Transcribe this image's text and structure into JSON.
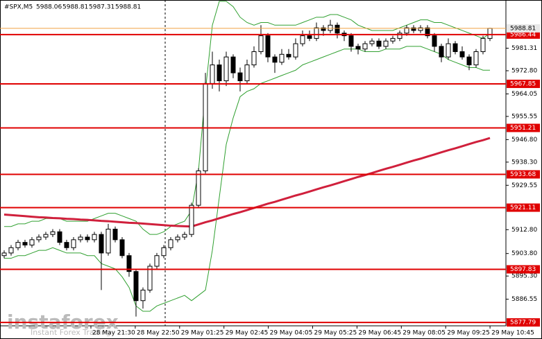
{
  "chart_data": {
    "type": "candlestick",
    "symbol": "#SPX,M5",
    "quote": [
      5988.06,
      5988.81,
      5987.31,
      5988.81
    ],
    "brand": "instaforex",
    "brand_tagline": "Instant Forex Trading",
    "ylim": [
      5876.5,
      5999.5
    ],
    "yticks": [
      5981.31,
      {
        "value": 5972.8,
        "label": "5972.80"
      },
      5964.05,
      5955.55,
      {
        "value": 5946.8,
        "label": "5946.80"
      },
      {
        "value": 5938.3,
        "label": "5938.30"
      },
      5929.55,
      {
        "value": 5912.8,
        "label": "5912.80"
      },
      {
        "value": 5903.8,
        "label": "5903.80"
      },
      {
        "value": 5895.3,
        "label": "5895.30"
      },
      5886.55
    ],
    "xlabels": [
      "28 May 21:30",
      "28 May 22:50",
      "29 May 01:25",
      "29 May 02:45",
      "29 May 04:05",
      "29 May 05:25",
      "29 May 06:45",
      "29 May 08:05",
      "29 May 09:25",
      "29 May 10:45"
    ],
    "levels": [
      5986.44,
      5967.85,
      5951.21,
      5933.68,
      5921.11,
      5897.83,
      5877.79
    ],
    "level_color": "#e00000",
    "current_price": 5988.81,
    "current_color": "#f0a040",
    "candles": [
      [
        5903,
        5905,
        5902,
        5904
      ],
      [
        5904,
        5907,
        5903,
        5906
      ],
      [
        5906,
        5909,
        5905,
        5908
      ],
      [
        5908,
        5909,
        5906,
        5907
      ],
      [
        5907,
        5910,
        5906,
        5909
      ],
      [
        5909,
        5911,
        5908,
        5910
      ],
      [
        5910,
        5912,
        5909,
        5911
      ],
      [
        5911,
        5913,
        5910,
        5912
      ],
      [
        5912,
        5913,
        5907,
        5908
      ],
      [
        5908,
        5909,
        5905,
        5906
      ],
      [
        5906,
        5910,
        5905,
        5909
      ],
      [
        5909,
        5911,
        5908,
        5910
      ],
      [
        5910,
        5911,
        5908,
        5909
      ],
      [
        5909,
        5912,
        5908,
        5911
      ],
      [
        5911,
        5912,
        5890,
        5904
      ],
      [
        5904,
        5915,
        5903,
        5913
      ],
      [
        5913,
        5914,
        5908,
        5909
      ],
      [
        5909,
        5910,
        5902,
        5903
      ],
      [
        5903,
        5904,
        5895,
        5897
      ],
      [
        5897,
        5898,
        5880,
        5886
      ],
      [
        5886,
        5891,
        5883,
        5890
      ],
      [
        5890,
        5900,
        5889,
        5899
      ],
      [
        5899,
        5904,
        5898,
        5903
      ],
      [
        5903,
        5907,
        5902,
        5906
      ],
      [
        5906,
        5910,
        5905,
        5909
      ],
      [
        5909,
        5911,
        5908,
        5910
      ],
      [
        5910,
        5912,
        5909,
        5911
      ],
      [
        5911,
        5923,
        5910,
        5922
      ],
      [
        5922,
        5936,
        5921,
        5935
      ],
      [
        5935,
        5972,
        5934,
        5968
      ],
      [
        5968,
        5980,
        5966,
        5975
      ],
      [
        5975,
        5977,
        5965,
        5969
      ],
      [
        5969,
        5980,
        5967,
        5978
      ],
      [
        5978,
        5979,
        5970,
        5972
      ],
      [
        5972,
        5974,
        5965,
        5969
      ],
      [
        5969,
        5977,
        5968,
        5975
      ],
      [
        5975,
        5982,
        5974,
        5980
      ],
      [
        5980,
        5990,
        5979,
        5986
      ],
      [
        5986,
        5987,
        5976,
        5978
      ],
      [
        5978,
        5979,
        5972,
        5976
      ],
      [
        5976,
        5981,
        5975,
        5979
      ],
      [
        5979,
        5981,
        5977,
        5978
      ],
      [
        5978,
        5985,
        5977,
        5983
      ],
      [
        5983,
        5988,
        5982,
        5986
      ],
      [
        5986,
        5988,
        5984,
        5985
      ],
      [
        5985,
        5991,
        5984,
        5989
      ],
      [
        5989,
        5990,
        5986,
        5988
      ],
      [
        5988,
        5992,
        5987,
        5990
      ],
      [
        5990,
        5991,
        5985,
        5987
      ],
      [
        5987,
        5988,
        5984,
        5986
      ],
      [
        5986,
        5987,
        5980,
        5982
      ],
      [
        5982,
        5983,
        5979,
        5981
      ],
      [
        5981,
        5984,
        5980,
        5983
      ],
      [
        5983,
        5985,
        5982,
        5984
      ],
      [
        5984,
        5985,
        5981,
        5982
      ],
      [
        5982,
        5985,
        5981,
        5984
      ],
      [
        5984,
        5986,
        5983,
        5985
      ],
      [
        5985,
        5988,
        5984,
        5987
      ],
      [
        5987,
        5990,
        5986,
        5989
      ],
      [
        5989,
        5990,
        5987,
        5988
      ],
      [
        5988,
        5990,
        5987,
        5989
      ],
      [
        5989,
        5990,
        5985,
        5986
      ],
      [
        5986,
        5987,
        5980,
        5982
      ],
      [
        5982,
        5983,
        5976,
        5978
      ],
      [
        5978,
        5985,
        5977,
        5983
      ],
      [
        5983,
        5984,
        5979,
        5980
      ],
      [
        5980,
        5982,
        5977,
        5978
      ],
      [
        5978,
        5979,
        5973,
        5975
      ],
      [
        5975,
        5981,
        5974,
        5980
      ],
      [
        5980,
        5986,
        5979,
        5985
      ],
      [
        5985,
        5989,
        5984,
        5988.81
      ]
    ],
    "ma": {
      "color": "#d0203c",
      "values": [
        5918.5,
        5918.3,
        5918.1,
        5917.9,
        5917.7,
        5917.5,
        5917.4,
        5917.2,
        5917.1,
        5916.9,
        5916.8,
        5916.6,
        5916.5,
        5916.3,
        5916.1,
        5916.0,
        5915.8,
        5915.6,
        5915.4,
        5915.3,
        5915.1,
        5914.9,
        5914.7,
        5914.5,
        5914.3,
        5914.2,
        5914.1,
        5914.0,
        5914.8,
        5915.6,
        5916.3,
        5917.1,
        5917.9,
        5918.7,
        5919.4,
        5920.2,
        5921.0,
        5921.8,
        5922.6,
        5923.3,
        5924.1,
        5924.9,
        5925.7,
        5926.4,
        5927.2,
        5928.0,
        5928.8,
        5929.5,
        5930.3,
        5931.1,
        5931.9,
        5932.7,
        5933.4,
        5934.2,
        5935.0,
        5935.8,
        5936.5,
        5937.3,
        5938.1,
        5938.9,
        5939.6,
        5940.4,
        5941.2,
        5942.0,
        5942.8,
        5943.5,
        5944.3,
        5945.1,
        5945.9,
        5946.6,
        5947.4
      ]
    },
    "bands": {
      "color": "#30a030",
      "upper": [
        5914,
        5914,
        5915,
        5915,
        5916,
        5916,
        5917,
        5917,
        5917,
        5916,
        5916,
        5916,
        5916,
        5917,
        5918,
        5919,
        5919,
        5918,
        5917,
        5916,
        5913,
        5911,
        5911,
        5912,
        5914,
        5915,
        5916,
        5920,
        5935,
        5965,
        5990,
        5999,
        5999,
        5997,
        5993,
        5991,
        5990,
        5991,
        5991,
        5990,
        5990,
        5990,
        5990,
        5991,
        5992,
        5993,
        5993,
        5994,
        5994,
        5993,
        5992,
        5990,
        5989,
        5988,
        5988,
        5988,
        5988,
        5989,
        5990,
        5991,
        5992,
        5992,
        5991,
        5991,
        5990,
        5989,
        5988,
        5987,
        5986,
        5985,
        5987
      ],
      "lower": [
        5902,
        5902,
        5903,
        5903,
        5904,
        5905,
        5905,
        5906,
        5905,
        5904,
        5904,
        5904,
        5903,
        5903,
        5900,
        5899,
        5898,
        5895,
        5891,
        5884,
        5882,
        5882,
        5884,
        5885,
        5886,
        5887,
        5888,
        5886,
        5888,
        5890,
        5905,
        5925,
        5945,
        5955,
        5963,
        5965,
        5966,
        5968,
        5969,
        5970,
        5971,
        5972,
        5973,
        5975,
        5976,
        5977,
        5978,
        5979,
        5980,
        5981,
        5981,
        5981,
        5980,
        5980,
        5980,
        5981,
        5981,
        5981,
        5982,
        5982,
        5982,
        5981,
        5980,
        5979,
        5977,
        5976,
        5975,
        5974,
        5974,
        5973,
        5973
      ]
    }
  }
}
